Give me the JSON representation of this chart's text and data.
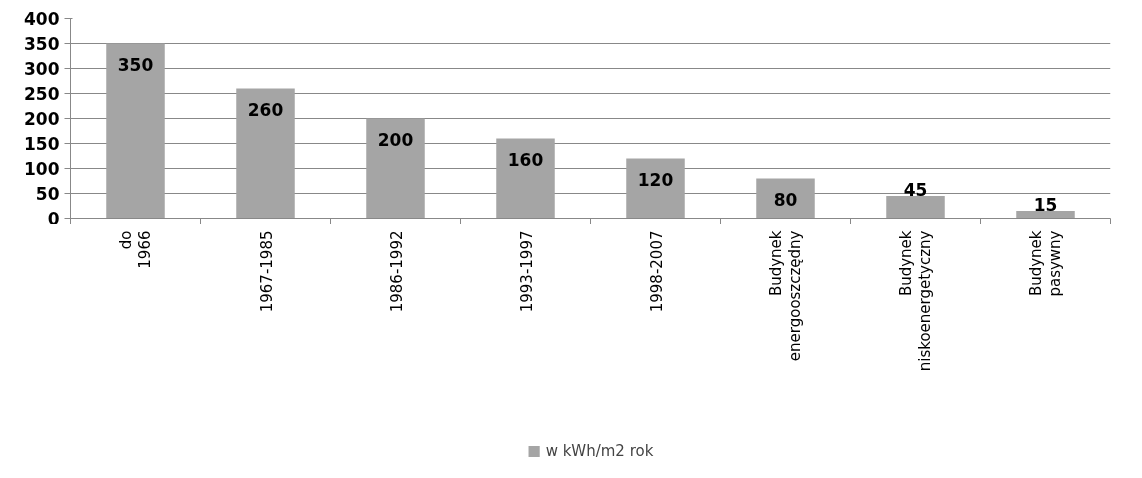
{
  "chart_data": {
    "type": "bar",
    "categories": [
      "do 1966",
      "1967-1985",
      "1986-1992",
      "1993-1997",
      "1998-2007",
      "Budynek energooszczędny",
      "Budynek niskoenergetyczny",
      "Budynek pasywny"
    ],
    "series": [
      {
        "name": "w kWh/m2 rok",
        "color": "#a5a5a5",
        "values": [
          350,
          260,
          200,
          160,
          120,
          80,
          45,
          15
        ]
      }
    ],
    "ylim": [
      0,
      400
    ],
    "yticks": [
      0,
      50,
      100,
      150,
      200,
      250,
      300,
      350,
      400
    ],
    "grid": "y",
    "legend": "bottom",
    "data_labels": true
  }
}
